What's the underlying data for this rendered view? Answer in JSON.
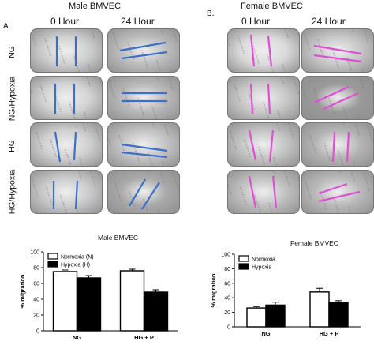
{
  "figure": {
    "panel_a": {
      "letter": "A.",
      "title": "Male BMVEC",
      "columns": [
        "0 Hour",
        "24 Hour"
      ],
      "rows": [
        "NG",
        "NG/Hypoxia",
        "HG",
        "HG/Hypoxia"
      ],
      "line_color": "#3b6fc9"
    },
    "panel_b": {
      "letter": "B.",
      "title": "Female BMVEC",
      "columns": [
        "0 Hour",
        "24 Hour"
      ],
      "line_color": "#e04ed6"
    }
  },
  "chart_data": [
    {
      "type": "bar",
      "title": "Male BMVEC",
      "ylabel": "% migration",
      "xlabel": "",
      "categories": [
        "NG",
        "HG + P"
      ],
      "ylim": [
        0,
        100
      ],
      "yticks": [
        0,
        20,
        40,
        60,
        80,
        100
      ],
      "legend": {
        "placement": "top-left"
      },
      "series": [
        {
          "name": "Normoxia (N)",
          "color": "#ffffff",
          "values": [
            75,
            76
          ],
          "errors": [
            2,
            2
          ]
        },
        {
          "name": "Hypoxia (H)",
          "color": "#000000",
          "values": [
            67,
            49
          ],
          "errors": [
            3,
            3
          ]
        }
      ]
    },
    {
      "type": "bar",
      "title": "Female BMVEC",
      "ylabel": "% migration",
      "xlabel": "",
      "categories": [
        "NG",
        "HG + P"
      ],
      "ylim": [
        0,
        100
      ],
      "yticks": [
        0,
        20,
        40,
        60,
        80,
        100
      ],
      "legend": {
        "placement": "top-left"
      },
      "series": [
        {
          "name": "Normoxia",
          "color": "#ffffff",
          "values": [
            26,
            48
          ],
          "errors": [
            2,
            5
          ]
        },
        {
          "name": "Hypoxia",
          "color": "#000000",
          "values": [
            30,
            34
          ],
          "errors": [
            4,
            2
          ]
        }
      ]
    }
  ]
}
